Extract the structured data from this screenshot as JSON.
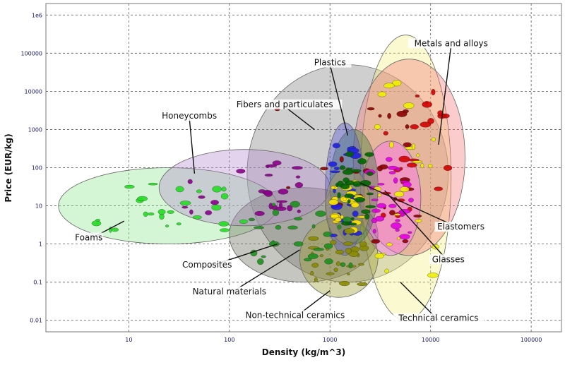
{
  "chart_data": {
    "type": "scatter",
    "xlabel": "Density (kg/m^3)",
    "ylabel": "Price (EUR/kg)",
    "xscale": "log",
    "yscale": "log",
    "xlim": [
      1.5,
      200000
    ],
    "ylim": [
      0.005,
      2000000
    ],
    "grid": true,
    "x_ticks": [
      10,
      100,
      1000,
      10000,
      100000
    ],
    "x_tick_labels": [
      "10",
      "100",
      "1000",
      "10000",
      "100000"
    ],
    "y_ticks": [
      0.01,
      0.1,
      1,
      10,
      100,
      1000,
      10000,
      100000,
      1000000
    ],
    "y_tick_labels": [
      "0.01",
      "0.1",
      "1",
      "10",
      "100",
      "1000",
      "10000",
      "100000",
      "1e6"
    ],
    "families": [
      {
        "name": "Fibers and particulates",
        "color": "#808080",
        "density_range": [
          150,
          15000
        ],
        "price_range": [
          0.1,
          50000
        ],
        "label_at": [
          355,
          4000
        ],
        "arrow_to": [
          700,
          1000
        ]
      },
      {
        "name": "Plastics",
        "color": "#4f4fd6",
        "density_range": [
          900,
          2200
        ],
        "price_range": [
          0.5,
          1500
        ],
        "label_at": [
          1000,
          50000
        ],
        "arrow_to": [
          1500,
          700
        ]
      },
      {
        "name": "Metals and alloys",
        "color": "#f47a7a",
        "density_range": [
          1700,
          22000
        ],
        "price_range": [
          0.5,
          70000
        ],
        "label_at": [
          16000,
          160000
        ],
        "arrow_to": [
          12000,
          400
        ]
      },
      {
        "name": "Honeycombs",
        "color": "#b68cd0",
        "density_range": [
          20,
          1000
        ],
        "price_range": [
          3,
          300
        ],
        "label_at": [
          40,
          2000
        ],
        "arrow_to": [
          45,
          70
        ]
      },
      {
        "name": "Foams",
        "color": "#8ee88e",
        "density_range": [
          2,
          300
        ],
        "price_range": [
          1,
          100
        ],
        "label_at": [
          4,
          1.3
        ],
        "arrow_to": [
          9,
          4
        ]
      },
      {
        "name": "Elastomers",
        "color": "#b0a040",
        "density_range": [
          900,
          2500
        ],
        "price_range": [
          1,
          100
        ],
        "label_at": [
          20000,
          2.5
        ],
        "arrow_to": [
          2000,
          40
        ]
      },
      {
        "name": "Glasses",
        "color": "#ff60ff",
        "density_range": [
          2000,
          8000
        ],
        "price_range": [
          0.5,
          500
        ],
        "label_at": [
          15000,
          0.35
        ],
        "arrow_to": [
          3500,
          25
        ]
      },
      {
        "name": "Technical ceramics",
        "color": "#f2f080",
        "density_range": [
          2000,
          16000
        ],
        "price_range": [
          0.01,
          300000
        ],
        "label_at": [
          12000,
          0.01
        ],
        "arrow_to": [
          5000,
          0.1
        ]
      },
      {
        "name": "Non-technical ceramics",
        "color": "#9a9a30",
        "density_range": [
          500,
          3000
        ],
        "price_range": [
          0.04,
          5
        ],
        "label_at": [
          450,
          0.012
        ],
        "arrow_to": [
          1000,
          0.06
        ]
      },
      {
        "name": "Natural materials",
        "color": "#6a6a5a",
        "density_range": [
          100,
          3000
        ],
        "price_range": [
          0.1,
          30
        ],
        "label_at": [
          100,
          0.05
        ],
        "arrow_to": [
          500,
          0.7
        ]
      },
      {
        "name": "Composites",
        "color": "#2c7a2c",
        "density_range": [
          1000,
          3000
        ],
        "price_range": [
          1,
          1000
        ],
        "label_at": [
          60,
          0.25
        ],
        "arrow_to": [
          300,
          1
        ]
      }
    ]
  }
}
